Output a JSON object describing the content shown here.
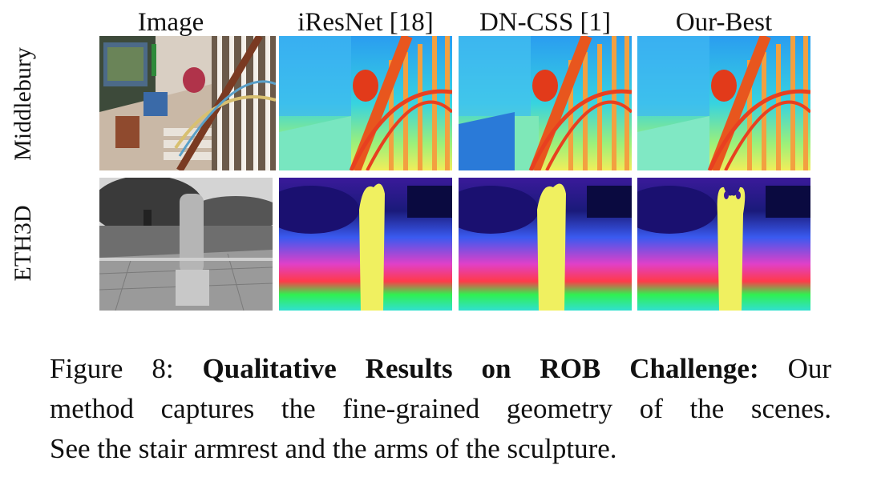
{
  "columns": [
    "Image",
    "iResNet [18]",
    "DN-CSS [1]",
    "Our-Best"
  ],
  "rows": [
    "Middlebury",
    "ETH3D"
  ],
  "caption": {
    "label": "Figure 8:",
    "title": "Qualitative Results on ROB Challenge:",
    "line1_tail": "Our",
    "line2": "method captures the fine-grained geometry of the scenes.",
    "line3": "See the stair armrest and the arms of the sculpture."
  }
}
